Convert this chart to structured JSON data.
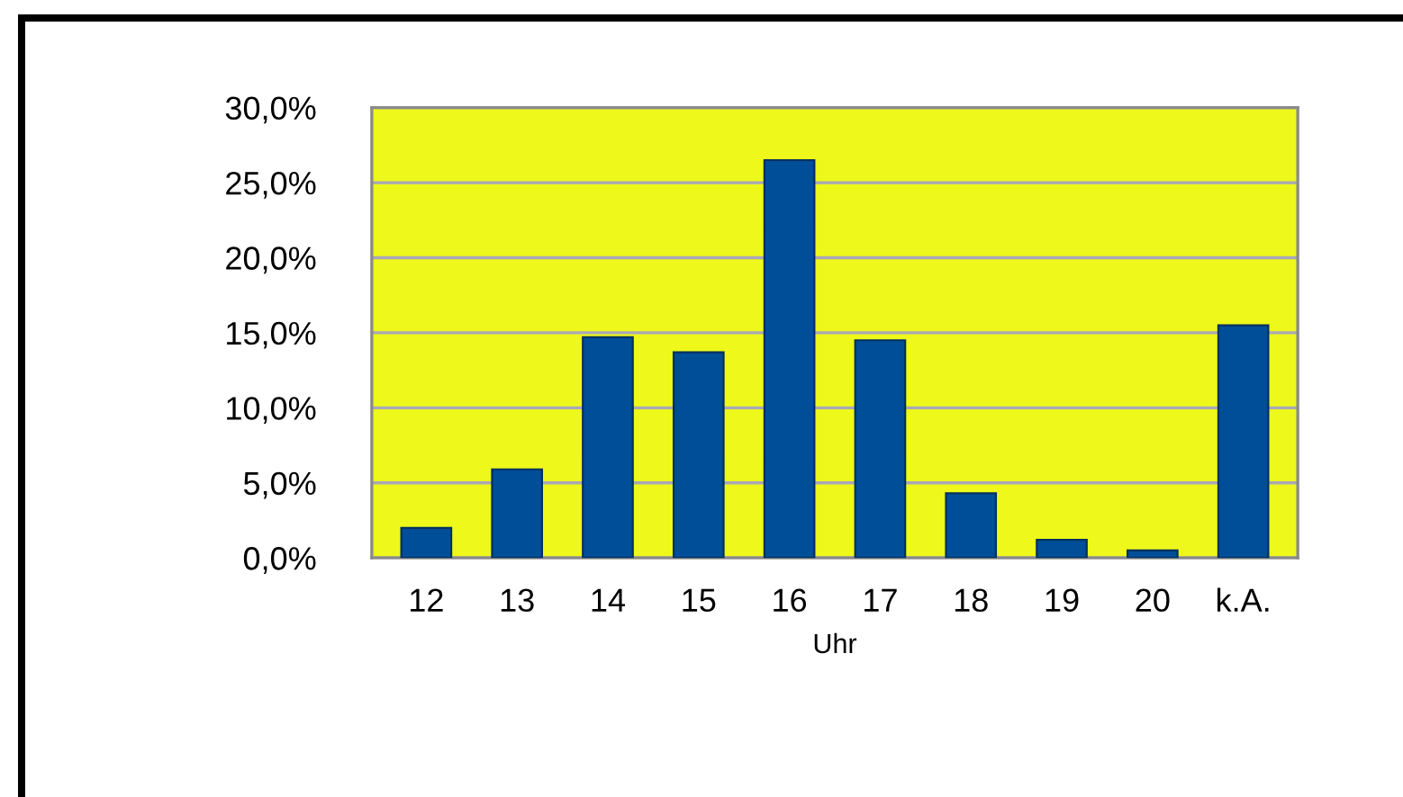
{
  "chart_data": {
    "type": "bar",
    "categories": [
      "12",
      "13",
      "14",
      "15",
      "16",
      "17",
      "18",
      "19",
      "20",
      "k.A."
    ],
    "values": [
      2.0,
      5.9,
      14.7,
      13.7,
      26.5,
      14.5,
      4.3,
      1.2,
      0.5,
      15.5
    ],
    "color": "#004e98",
    "xlabel": "Uhr",
    "ylim": [
      0,
      30
    ],
    "yticks": [
      {
        "value": 0,
        "label": "0,0%"
      },
      {
        "value": 5,
        "label": "5,0%"
      },
      {
        "value": 10,
        "label": "10,0%"
      },
      {
        "value": 15,
        "label": "15,0%"
      },
      {
        "value": 20,
        "label": "20,0%"
      },
      {
        "value": 25,
        "label": "25,0%"
      },
      {
        "value": 30,
        "label": "30,0%"
      }
    ],
    "grid": "y"
  }
}
